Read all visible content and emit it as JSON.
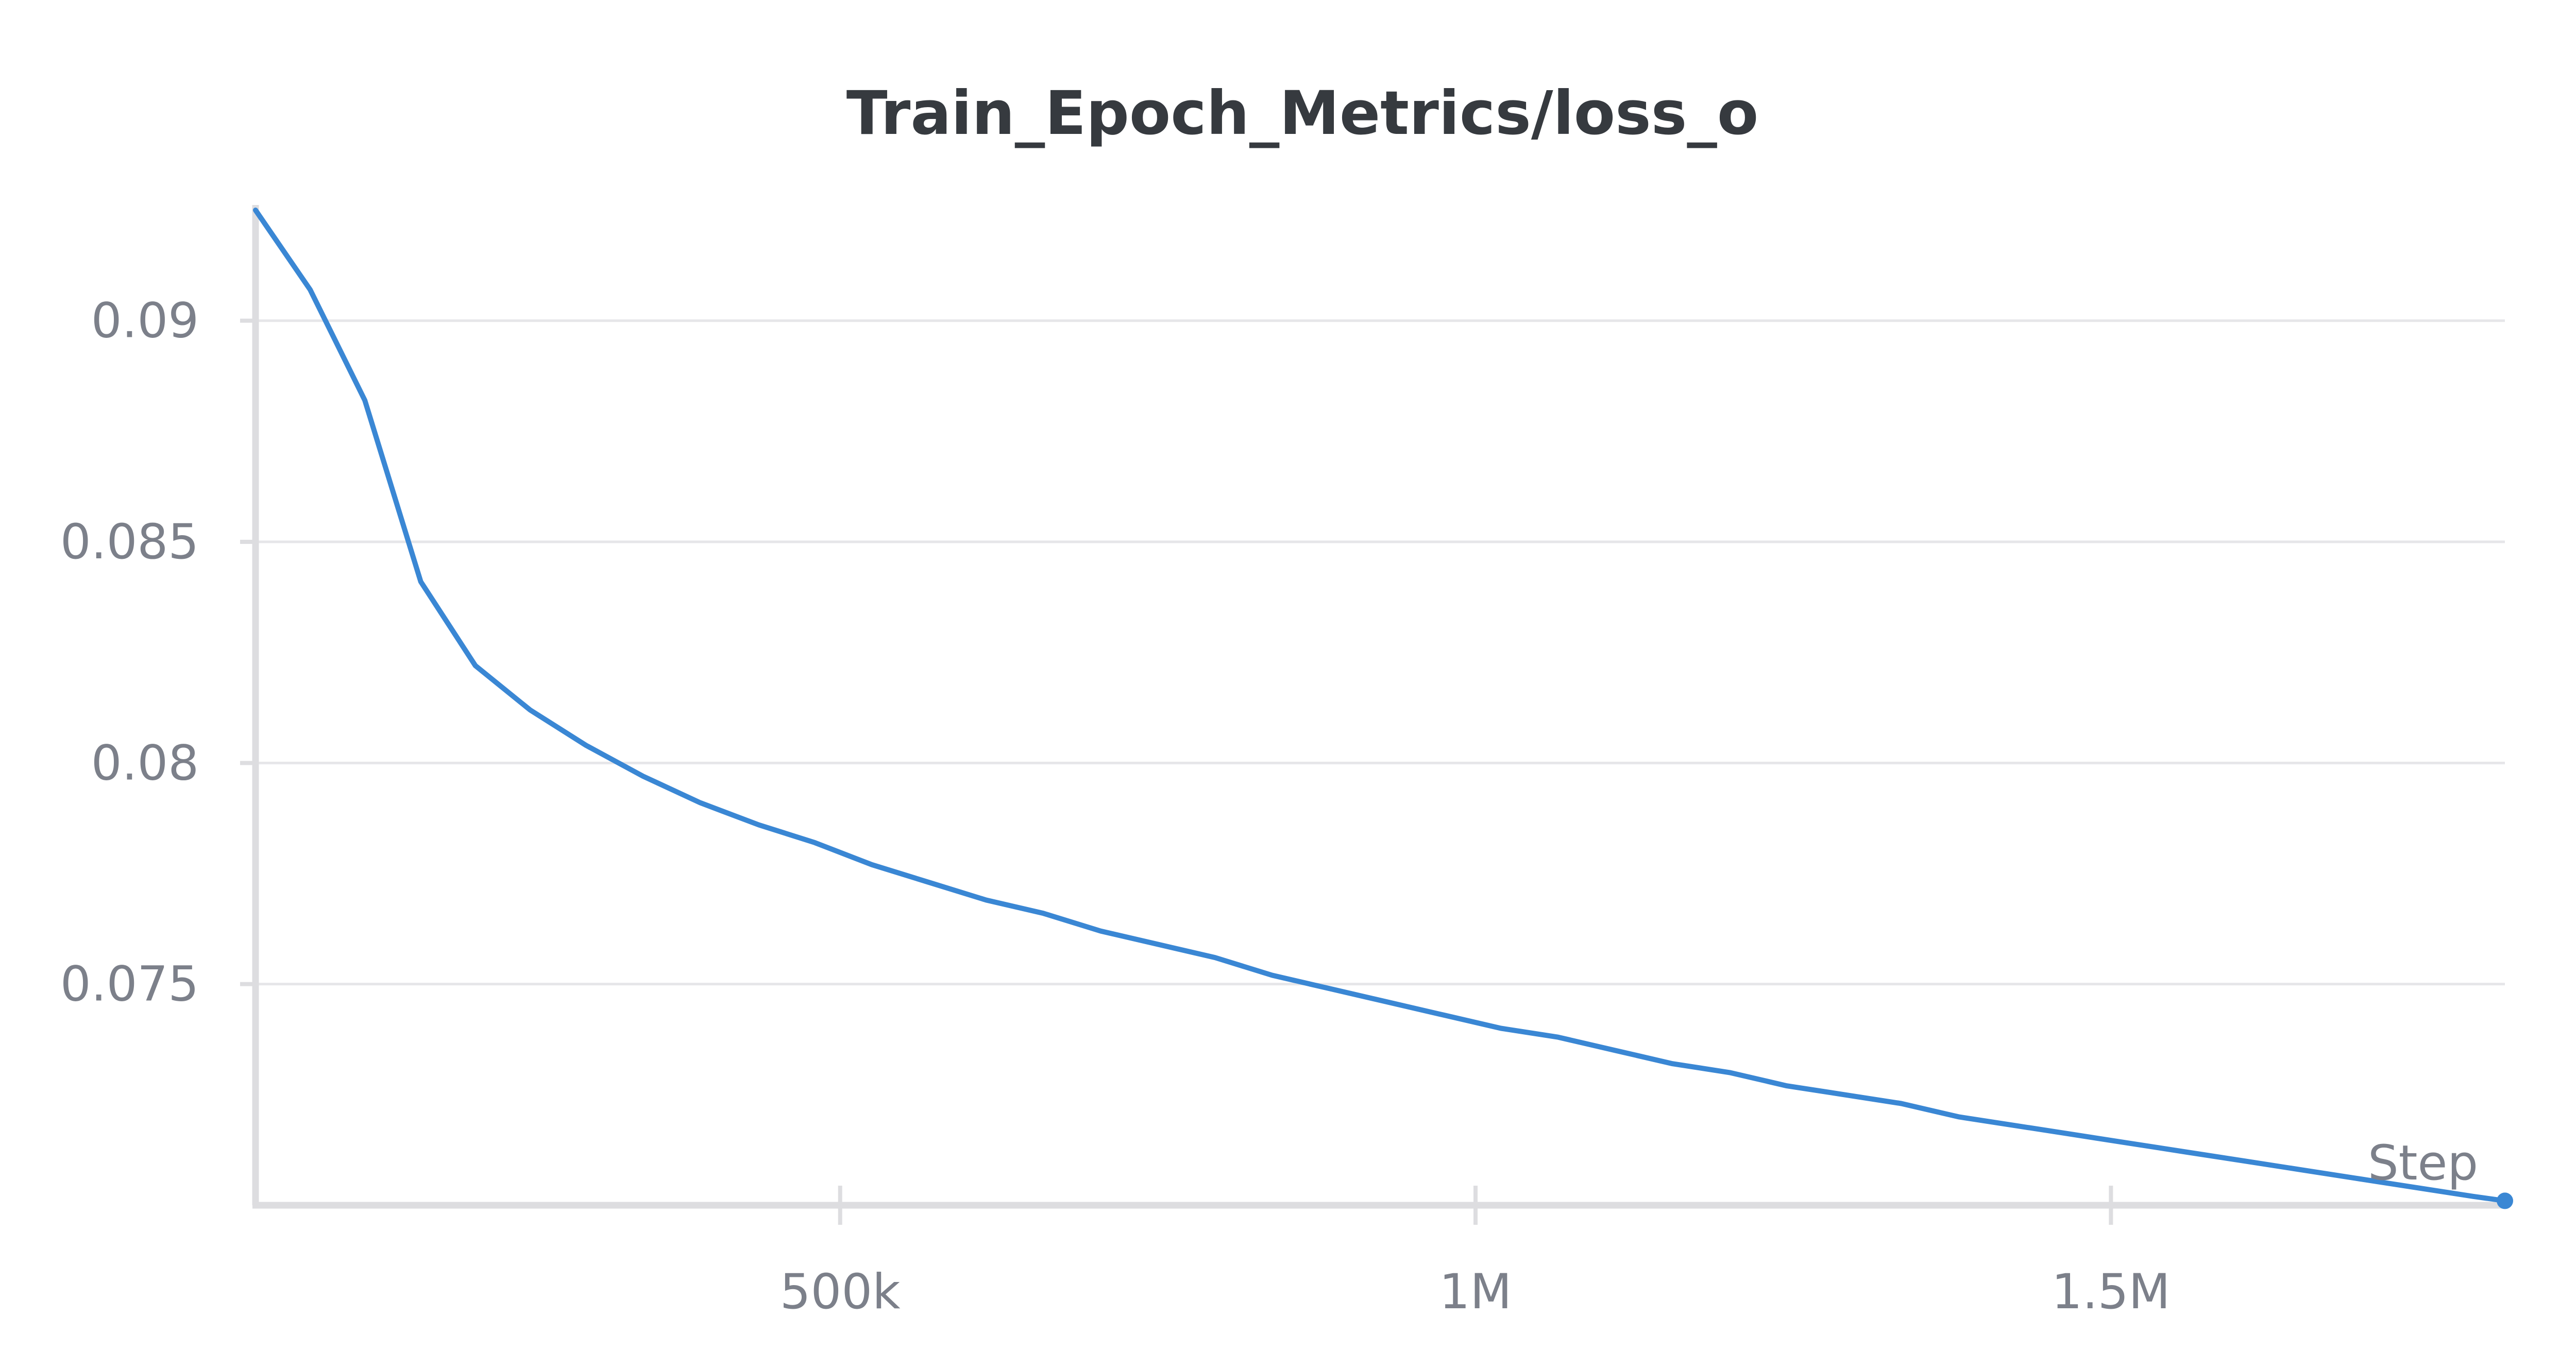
{
  "chart_data": {
    "type": "line",
    "title": "Train_Epoch_Metrics/loss_o",
    "xlabel": "Step",
    "ylabel": "",
    "xlim": [
      40000,
      1810000
    ],
    "ylim": [
      0.07,
      0.0925
    ],
    "x_ticks": [
      500000,
      1000000,
      1500000
    ],
    "x_tick_labels": [
      "500k",
      "1M",
      "1.5M"
    ],
    "y_ticks": [
      0.09,
      0.085,
      0.08,
      0.075
    ],
    "y_tick_labels": [
      "0.09",
      "0.085",
      "0.08",
      "0.075"
    ],
    "grid": true,
    "series": [
      {
        "color": "#3a87d4",
        "x": [
          40000,
          83000,
          126000,
          170000,
          213000,
          256000,
          300000,
          345000,
          390000,
          436000,
          480000,
          525000,
          570000,
          615000,
          660000,
          705000,
          750000,
          795000,
          840000,
          885000,
          930000,
          975000,
          1020000,
          1065000,
          1110000,
          1155000,
          1200000,
          1245000,
          1290000,
          1335000,
          1380000,
          1425000,
          1470000,
          1515000,
          1560000,
          1605000,
          1650000,
          1695000,
          1740000,
          1785000,
          1810000
        ],
        "y": [
          0.0925,
          0.0907,
          0.0882,
          0.0841,
          0.0822,
          0.0812,
          0.0804,
          0.0797,
          0.0791,
          0.0786,
          0.0782,
          0.0777,
          0.0773,
          0.0769,
          0.0766,
          0.0762,
          0.0759,
          0.0756,
          0.0752,
          0.0749,
          0.0746,
          0.0743,
          0.074,
          0.0738,
          0.0735,
          0.0732,
          0.073,
          0.0727,
          0.0725,
          0.0723,
          0.072,
          0.0718,
          0.0716,
          0.0714,
          0.0712,
          0.071,
          0.0708,
          0.0706,
          0.0704,
          0.0702,
          0.0701
        ]
      }
    ],
    "end_marker": true
  }
}
